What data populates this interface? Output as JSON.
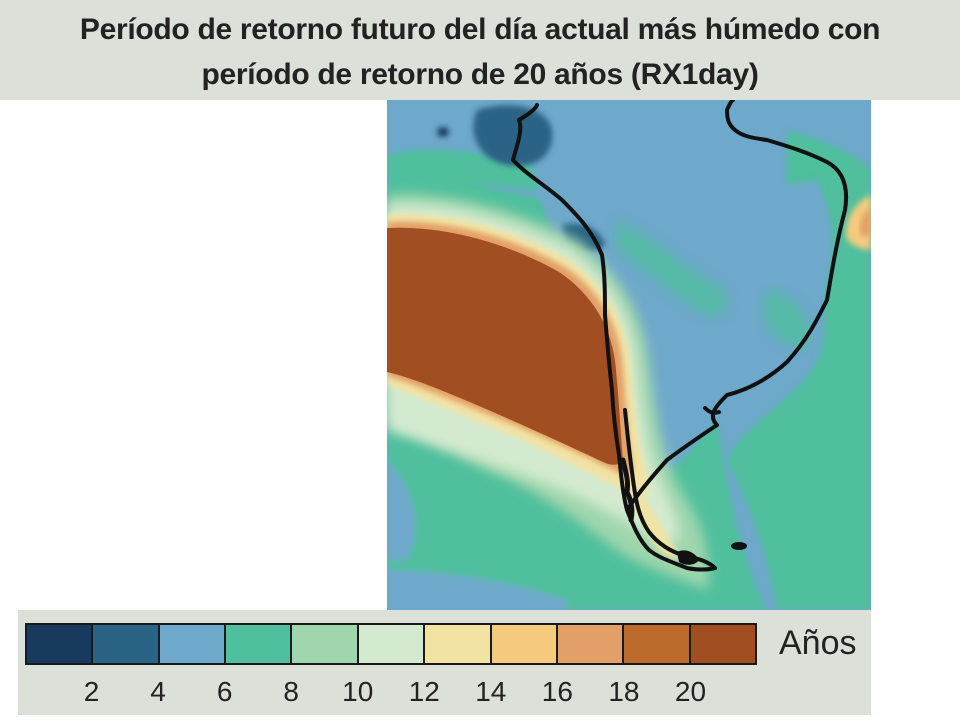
{
  "title": {
    "line1": "Período de retorno futuro del día actual más húmedo con",
    "line2": "período de retorno de 20 años (RX1day)"
  },
  "legend": {
    "unit": "Años",
    "colors": [
      "#173a5e",
      "#2b6385",
      "#6ea8cb",
      "#4fbf9d",
      "#9fd6ad",
      "#d4ead0",
      "#f2e3a3",
      "#f5ca7e",
      "#e2a068",
      "#bd6a2d",
      "#a14f22"
    ],
    "ticks": [
      "2",
      "4",
      "6",
      "8",
      "10",
      "12",
      "14",
      "16",
      "18",
      "20"
    ]
  },
  "map": {
    "region": "South America and adjacent oceans",
    "colors": {
      "ocean_blue": "#6ea8cb",
      "dark_blue": "#2b6385",
      "teal": "#4fbf9d",
      "light_green": "#9fd6ad",
      "pale_green": "#d4ead0",
      "pale_yellow": "#f2e3a3",
      "yellow": "#f5ca7e",
      "orange": "#e2a068",
      "brown": "#a14f22",
      "coastline": "#111111"
    }
  }
}
